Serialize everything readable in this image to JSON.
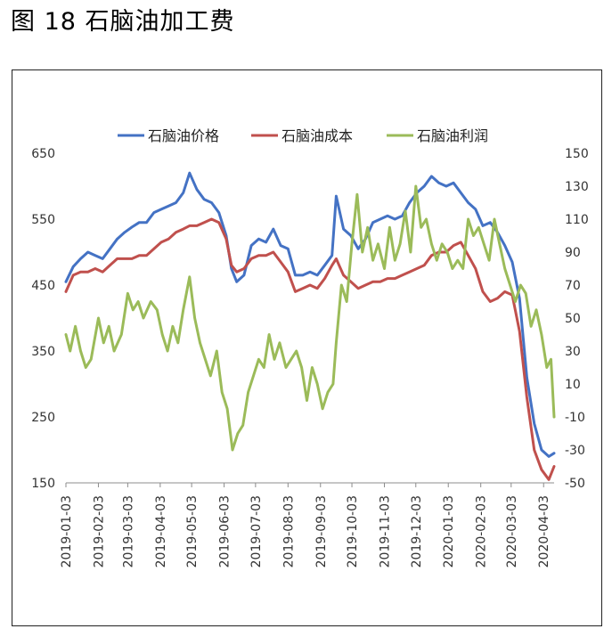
{
  "figure": {
    "title": "图 18 石脑油加工费"
  },
  "chart_data": {
    "type": "line",
    "title": "",
    "legend_position": "top",
    "grid": false,
    "left_axis": {
      "ylim": [
        150,
        650
      ],
      "ticks": [
        "650",
        "550",
        "450",
        "350",
        "250",
        "150"
      ]
    },
    "right_axis": {
      "ylim": [
        -50,
        150
      ],
      "ticks": [
        "150",
        "130",
        "110",
        "90",
        "70",
        "50",
        "30",
        "10",
        "-10",
        "-30",
        "-50"
      ]
    },
    "x_ticks": [
      "2019-01-03",
      "2019-02-03",
      "2019-03-03",
      "2019-04-03",
      "2019-05-03",
      "2019-06-03",
      "2019-07-03",
      "2019-08-03",
      "2019-09-03",
      "2019-10-03",
      "2019-11-03",
      "2019-12-03",
      "2020-01-03",
      "2020-02-03",
      "2020-03-03",
      "2020-04-03"
    ],
    "series": [
      {
        "name": "石脑油价格",
        "axis": "left",
        "color": "#4472C4",
        "points": [
          [
            "2019-01-03",
            455
          ],
          [
            "2019-01-10",
            478
          ],
          [
            "2019-01-17",
            490
          ],
          [
            "2019-01-24",
            500
          ],
          [
            "2019-01-31",
            495
          ],
          [
            "2019-02-07",
            490
          ],
          [
            "2019-02-14",
            505
          ],
          [
            "2019-02-21",
            520
          ],
          [
            "2019-02-28",
            530
          ],
          [
            "2019-03-07",
            538
          ],
          [
            "2019-03-14",
            545
          ],
          [
            "2019-03-21",
            545
          ],
          [
            "2019-03-28",
            560
          ],
          [
            "2019-04-04",
            565
          ],
          [
            "2019-04-11",
            570
          ],
          [
            "2019-04-18",
            575
          ],
          [
            "2019-04-25",
            590
          ],
          [
            "2019-05-01",
            620
          ],
          [
            "2019-05-08",
            595
          ],
          [
            "2019-05-15",
            580
          ],
          [
            "2019-05-22",
            575
          ],
          [
            "2019-05-29",
            560
          ],
          [
            "2019-06-05",
            525
          ],
          [
            "2019-06-10",
            475
          ],
          [
            "2019-06-15",
            455
          ],
          [
            "2019-06-22",
            465
          ],
          [
            "2019-06-29",
            510
          ],
          [
            "2019-07-06",
            520
          ],
          [
            "2019-07-13",
            515
          ],
          [
            "2019-07-20",
            535
          ],
          [
            "2019-07-27",
            510
          ],
          [
            "2019-08-03",
            505
          ],
          [
            "2019-08-10",
            465
          ],
          [
            "2019-08-17",
            465
          ],
          [
            "2019-08-24",
            470
          ],
          [
            "2019-08-31",
            465
          ],
          [
            "2019-09-07",
            480
          ],
          [
            "2019-09-14",
            495
          ],
          [
            "2019-09-18",
            585
          ],
          [
            "2019-09-25",
            535
          ],
          [
            "2019-10-02",
            525
          ],
          [
            "2019-10-09",
            505
          ],
          [
            "2019-10-16",
            520
          ],
          [
            "2019-10-23",
            545
          ],
          [
            "2019-10-30",
            550
          ],
          [
            "2019-11-06",
            555
          ],
          [
            "2019-11-13",
            550
          ],
          [
            "2019-11-20",
            555
          ],
          [
            "2019-11-27",
            575
          ],
          [
            "2019-12-04",
            590
          ],
          [
            "2019-12-11",
            600
          ],
          [
            "2019-12-18",
            615
          ],
          [
            "2019-12-25",
            605
          ],
          [
            "2020-01-01",
            600
          ],
          [
            "2020-01-08",
            605
          ],
          [
            "2020-01-15",
            590
          ],
          [
            "2020-01-22",
            575
          ],
          [
            "2020-01-29",
            565
          ],
          [
            "2020-02-05",
            540
          ],
          [
            "2020-02-12",
            545
          ],
          [
            "2020-02-19",
            530
          ],
          [
            "2020-02-26",
            510
          ],
          [
            "2020-03-04",
            485
          ],
          [
            "2020-03-11",
            430
          ],
          [
            "2020-03-18",
            310
          ],
          [
            "2020-03-25",
            240
          ],
          [
            "2020-04-01",
            200
          ],
          [
            "2020-04-08",
            190
          ],
          [
            "2020-04-13",
            195
          ]
        ]
      },
      {
        "name": "石脑油成本",
        "axis": "left",
        "color": "#C0504D",
        "points": [
          [
            "2019-01-03",
            440
          ],
          [
            "2019-01-10",
            465
          ],
          [
            "2019-01-17",
            470
          ],
          [
            "2019-01-24",
            470
          ],
          [
            "2019-01-31",
            475
          ],
          [
            "2019-02-07",
            470
          ],
          [
            "2019-02-14",
            480
          ],
          [
            "2019-02-21",
            490
          ],
          [
            "2019-02-28",
            490
          ],
          [
            "2019-03-07",
            490
          ],
          [
            "2019-03-14",
            495
          ],
          [
            "2019-03-21",
            495
          ],
          [
            "2019-03-28",
            505
          ],
          [
            "2019-04-04",
            515
          ],
          [
            "2019-04-11",
            520
          ],
          [
            "2019-04-18",
            530
          ],
          [
            "2019-04-25",
            535
          ],
          [
            "2019-05-01",
            540
          ],
          [
            "2019-05-08",
            540
          ],
          [
            "2019-05-15",
            545
          ],
          [
            "2019-05-22",
            550
          ],
          [
            "2019-05-29",
            545
          ],
          [
            "2019-06-05",
            520
          ],
          [
            "2019-06-10",
            480
          ],
          [
            "2019-06-15",
            470
          ],
          [
            "2019-06-22",
            475
          ],
          [
            "2019-06-29",
            490
          ],
          [
            "2019-07-06",
            495
          ],
          [
            "2019-07-13",
            495
          ],
          [
            "2019-07-20",
            500
          ],
          [
            "2019-07-27",
            485
          ],
          [
            "2019-08-03",
            470
          ],
          [
            "2019-08-10",
            440
          ],
          [
            "2019-08-17",
            445
          ],
          [
            "2019-08-24",
            450
          ],
          [
            "2019-08-31",
            445
          ],
          [
            "2019-09-07",
            460
          ],
          [
            "2019-09-14",
            480
          ],
          [
            "2019-09-18",
            490
          ],
          [
            "2019-09-25",
            465
          ],
          [
            "2019-10-02",
            455
          ],
          [
            "2019-10-09",
            445
          ],
          [
            "2019-10-16",
            450
          ],
          [
            "2019-10-23",
            455
          ],
          [
            "2019-10-30",
            455
          ],
          [
            "2019-11-06",
            460
          ],
          [
            "2019-11-13",
            460
          ],
          [
            "2019-11-20",
            465
          ],
          [
            "2019-11-27",
            470
          ],
          [
            "2019-12-04",
            475
          ],
          [
            "2019-12-11",
            480
          ],
          [
            "2019-12-18",
            495
          ],
          [
            "2019-12-25",
            500
          ],
          [
            "2020-01-01",
            500
          ],
          [
            "2020-01-08",
            510
          ],
          [
            "2020-01-15",
            515
          ],
          [
            "2020-01-22",
            495
          ],
          [
            "2020-01-29",
            475
          ],
          [
            "2020-02-05",
            440
          ],
          [
            "2020-02-12",
            425
          ],
          [
            "2020-02-19",
            430
          ],
          [
            "2020-02-26",
            440
          ],
          [
            "2020-03-04",
            435
          ],
          [
            "2020-03-11",
            380
          ],
          [
            "2020-03-18",
            280
          ],
          [
            "2020-03-25",
            200
          ],
          [
            "2020-04-01",
            170
          ],
          [
            "2020-04-08",
            155
          ],
          [
            "2020-04-13",
            175
          ]
        ]
      },
      {
        "name": "石脑油利润",
        "axis": "right",
        "color": "#9BBB59",
        "points": [
          [
            "2019-01-03",
            40
          ],
          [
            "2019-01-07",
            30
          ],
          [
            "2019-01-12",
            45
          ],
          [
            "2019-01-17",
            30
          ],
          [
            "2019-01-22",
            20
          ],
          [
            "2019-01-27",
            25
          ],
          [
            "2019-02-03",
            50
          ],
          [
            "2019-02-08",
            35
          ],
          [
            "2019-02-13",
            45
          ],
          [
            "2019-02-18",
            30
          ],
          [
            "2019-02-25",
            40
          ],
          [
            "2019-03-03",
            65
          ],
          [
            "2019-03-08",
            55
          ],
          [
            "2019-03-13",
            60
          ],
          [
            "2019-03-18",
            50
          ],
          [
            "2019-03-25",
            60
          ],
          [
            "2019-03-31",
            55
          ],
          [
            "2019-04-05",
            40
          ],
          [
            "2019-04-10",
            30
          ],
          [
            "2019-04-15",
            45
          ],
          [
            "2019-04-20",
            35
          ],
          [
            "2019-04-25",
            55
          ],
          [
            "2019-05-01",
            75
          ],
          [
            "2019-05-06",
            50
          ],
          [
            "2019-05-11",
            35
          ],
          [
            "2019-05-16",
            25
          ],
          [
            "2019-05-21",
            15
          ],
          [
            "2019-05-27",
            30
          ],
          [
            "2019-06-01",
            5
          ],
          [
            "2019-06-06",
            -5
          ],
          [
            "2019-06-11",
            -30
          ],
          [
            "2019-06-16",
            -20
          ],
          [
            "2019-06-21",
            -15
          ],
          [
            "2019-06-26",
            5
          ],
          [
            "2019-07-01",
            15
          ],
          [
            "2019-07-06",
            25
          ],
          [
            "2019-07-11",
            20
          ],
          [
            "2019-07-16",
            40
          ],
          [
            "2019-07-21",
            25
          ],
          [
            "2019-07-26",
            35
          ],
          [
            "2019-08-01",
            20
          ],
          [
            "2019-08-06",
            25
          ],
          [
            "2019-08-11",
            30
          ],
          [
            "2019-08-16",
            20
          ],
          [
            "2019-08-21",
            0
          ],
          [
            "2019-08-26",
            20
          ],
          [
            "2019-08-31",
            10
          ],
          [
            "2019-09-05",
            -5
          ],
          [
            "2019-09-10",
            5
          ],
          [
            "2019-09-15",
            10
          ],
          [
            "2019-09-18",
            35
          ],
          [
            "2019-09-23",
            70
          ],
          [
            "2019-09-28",
            60
          ],
          [
            "2019-10-03",
            95
          ],
          [
            "2019-10-08",
            125
          ],
          [
            "2019-10-13",
            90
          ],
          [
            "2019-10-18",
            105
          ],
          [
            "2019-10-23",
            85
          ],
          [
            "2019-10-28",
            95
          ],
          [
            "2019-11-03",
            80
          ],
          [
            "2019-11-08",
            105
          ],
          [
            "2019-11-13",
            85
          ],
          [
            "2019-11-18",
            95
          ],
          [
            "2019-11-23",
            115
          ],
          [
            "2019-11-28",
            90
          ],
          [
            "2019-12-03",
            130
          ],
          [
            "2019-12-08",
            105
          ],
          [
            "2019-12-13",
            110
          ],
          [
            "2019-12-18",
            95
          ],
          [
            "2019-12-23",
            85
          ],
          [
            "2019-12-28",
            95
          ],
          [
            "2020-01-02",
            90
          ],
          [
            "2020-01-07",
            80
          ],
          [
            "2020-01-12",
            85
          ],
          [
            "2020-01-17",
            80
          ],
          [
            "2020-01-22",
            110
          ],
          [
            "2020-01-27",
            100
          ],
          [
            "2020-02-01",
            105
          ],
          [
            "2020-02-06",
            95
          ],
          [
            "2020-02-11",
            85
          ],
          [
            "2020-02-16",
            110
          ],
          [
            "2020-02-21",
            95
          ],
          [
            "2020-02-26",
            80
          ],
          [
            "2020-03-02",
            70
          ],
          [
            "2020-03-07",
            60
          ],
          [
            "2020-03-12",
            70
          ],
          [
            "2020-03-17",
            65
          ],
          [
            "2020-03-22",
            45
          ],
          [
            "2020-03-27",
            55
          ],
          [
            "2020-04-01",
            40
          ],
          [
            "2020-04-06",
            20
          ],
          [
            "2020-04-10",
            25
          ],
          [
            "2020-04-13",
            -10
          ]
        ]
      }
    ]
  }
}
